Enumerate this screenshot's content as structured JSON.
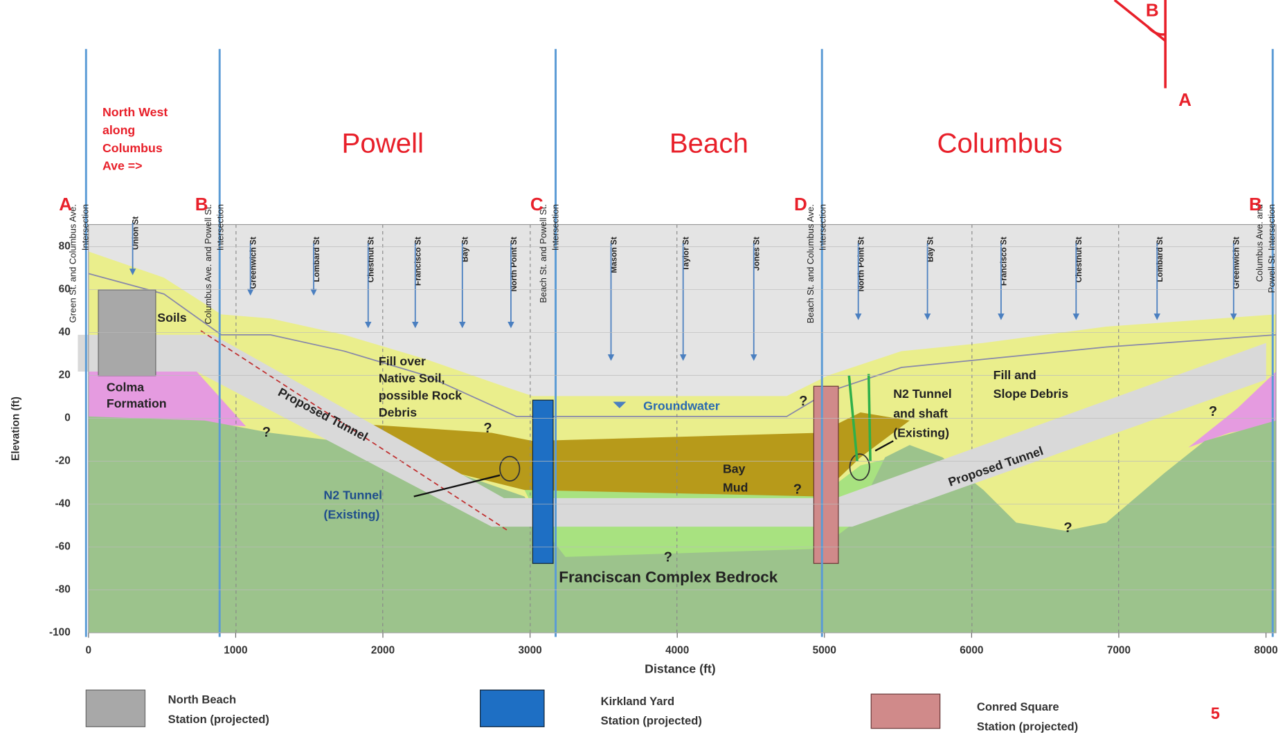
{
  "headers": [
    [
      "Green St. and Columbus Ave.",
      "Intersection"
    ],
    [
      "Columbus Ave. and Powell St.",
      "Intersection"
    ],
    [
      "Beach St. and Powell St.",
      "Intersection"
    ],
    [
      "Beach St. and Columbus Ave.",
      "Intersection"
    ],
    [
      "Columbus Ave. and",
      "Powell St. Intersection"
    ]
  ],
  "direction_note": [
    "North West",
    "along",
    "Columbus",
    "Ave =>"
  ],
  "segments": [
    "Powell",
    "Beach",
    "Columbus"
  ],
  "key_map": {
    "upper": "B",
    "lower": "A"
  },
  "points": [
    "A",
    "B",
    "C",
    "D",
    "B"
  ],
  "streets": [
    "Union St",
    "Greenwich St",
    "Lombard St",
    "Chestnut St",
    "Francisco St",
    "Bay St",
    "North Point St",
    "Mason St",
    "Taylor St",
    "Jones St",
    "North Point St",
    "Bay St",
    "Francisco St",
    "Chestnut St",
    "Lombard St",
    "Greenwich St"
  ],
  "axis": {
    "y_title": "Elevation (ft)",
    "x_title": "Distance (ft)",
    "yticks": [
      80,
      60,
      40,
      20,
      0,
      -20,
      -40,
      -60,
      -80,
      -100
    ],
    "xticks": [
      0,
      1000,
      2000,
      3000,
      4000,
      5000,
      6000,
      7000,
      8000
    ]
  },
  "units": {
    "soils": "Soils",
    "colma": [
      "Colma",
      "Formation"
    ],
    "fill_native": [
      "Fill over",
      "Native Soil,",
      "possible Rock",
      "Debris"
    ],
    "groundwater": "Groundwater",
    "bay_mud": [
      "Bay",
      "Mud"
    ],
    "bedrock": "Franciscan Complex Bedrock",
    "fill_slope": [
      "Fill and",
      "Slope Debris"
    ],
    "n2_shaft": [
      "N2 Tunnel",
      "and shaft",
      "(Existing)"
    ],
    "n2_tunnel": [
      "N2 Tunnel",
      "(Existing)"
    ],
    "proposed_left": "Proposed Tunnel",
    "proposed_right": "Proposed Tunnel",
    "unknown": [
      "?",
      "?",
      "?",
      "?",
      "?",
      "?",
      "?"
    ]
  },
  "legend": [
    [
      "North Beach",
      "Station (projected)"
    ],
    [
      "Kirkland Yard",
      "Station (projected)"
    ],
    [
      "Conred Square",
      "Station (projected)"
    ]
  ],
  "page_number": "5"
}
